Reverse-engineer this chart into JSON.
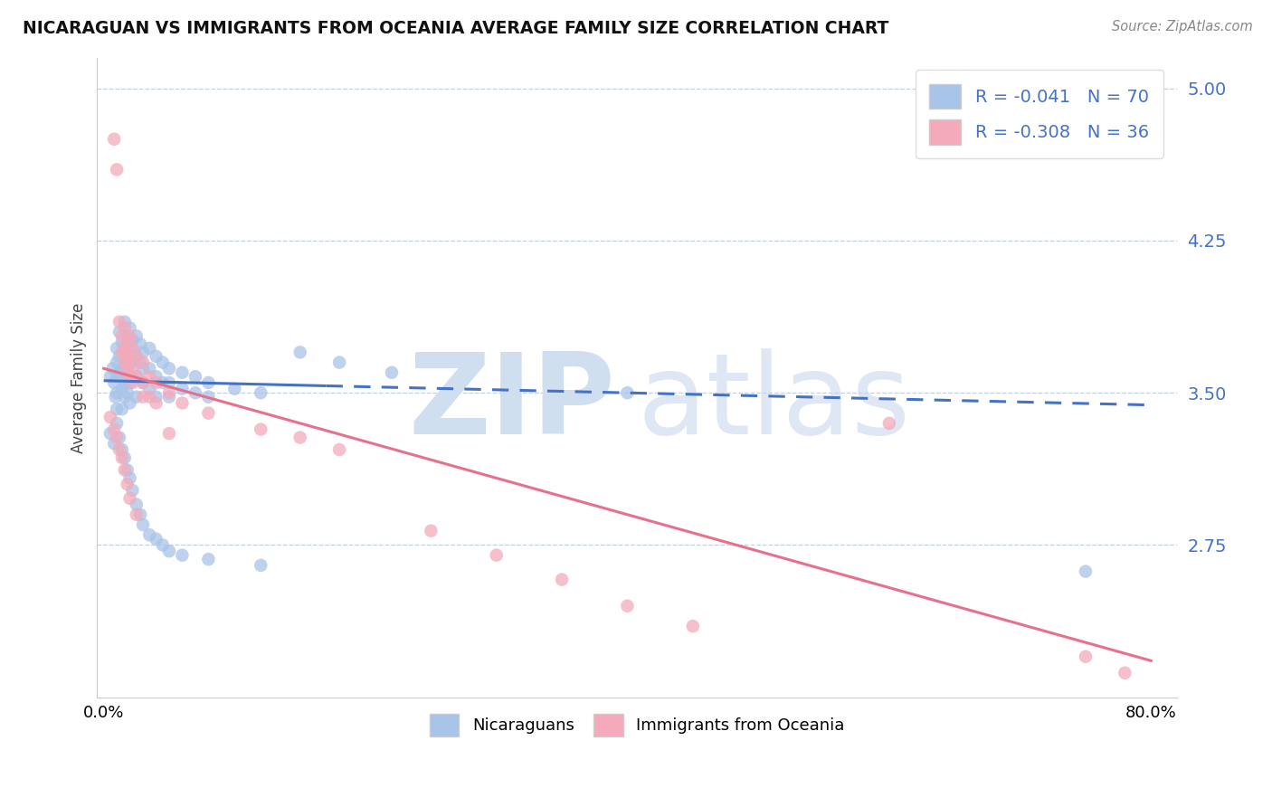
{
  "title": "NICARAGUAN VS IMMIGRANTS FROM OCEANIA AVERAGE FAMILY SIZE CORRELATION CHART",
  "source": "Source: ZipAtlas.com",
  "ylabel": "Average Family Size",
  "yticks": [
    2.75,
    3.5,
    4.25,
    5.0
  ],
  "xlim": [
    -0.005,
    0.82
  ],
  "ylim": [
    2.0,
    5.15
  ],
  "color_blue": "#A8C4E8",
  "color_pink": "#F4AABB",
  "color_blue_line": "#4472C4",
  "color_pink_line": "#E8708A",
  "color_text_blue": "#4472C4",
  "color_grid": "#BBCCDD",
  "blue_trend_x": [
    0.0,
    0.8
  ],
  "blue_trend_y": [
    3.56,
    3.44
  ],
  "pink_trend_x": [
    0.0,
    0.8
  ],
  "pink_trend_y": [
    3.62,
    2.18
  ],
  "blue_scatter": [
    [
      0.005,
      3.58
    ],
    [
      0.007,
      3.62
    ],
    [
      0.008,
      3.55
    ],
    [
      0.009,
      3.48
    ],
    [
      0.01,
      3.72
    ],
    [
      0.01,
      3.65
    ],
    [
      0.01,
      3.58
    ],
    [
      0.01,
      3.5
    ],
    [
      0.01,
      3.42
    ],
    [
      0.012,
      3.8
    ],
    [
      0.012,
      3.68
    ],
    [
      0.012,
      3.6
    ],
    [
      0.014,
      3.75
    ],
    [
      0.014,
      3.62
    ],
    [
      0.014,
      3.52
    ],
    [
      0.014,
      3.42
    ],
    [
      0.016,
      3.85
    ],
    [
      0.016,
      3.72
    ],
    [
      0.016,
      3.62
    ],
    [
      0.016,
      3.55
    ],
    [
      0.016,
      3.48
    ],
    [
      0.018,
      3.78
    ],
    [
      0.018,
      3.68
    ],
    [
      0.018,
      3.58
    ],
    [
      0.018,
      3.5
    ],
    [
      0.02,
      3.82
    ],
    [
      0.02,
      3.72
    ],
    [
      0.02,
      3.64
    ],
    [
      0.02,
      3.55
    ],
    [
      0.02,
      3.45
    ],
    [
      0.022,
      3.76
    ],
    [
      0.022,
      3.66
    ],
    [
      0.022,
      3.58
    ],
    [
      0.025,
      3.78
    ],
    [
      0.025,
      3.68
    ],
    [
      0.025,
      3.58
    ],
    [
      0.025,
      3.48
    ],
    [
      0.028,
      3.74
    ],
    [
      0.028,
      3.65
    ],
    [
      0.03,
      3.7
    ],
    [
      0.03,
      3.62
    ],
    [
      0.03,
      3.55
    ],
    [
      0.035,
      3.72
    ],
    [
      0.035,
      3.62
    ],
    [
      0.035,
      3.52
    ],
    [
      0.04,
      3.68
    ],
    [
      0.04,
      3.58
    ],
    [
      0.04,
      3.48
    ],
    [
      0.045,
      3.65
    ],
    [
      0.045,
      3.55
    ],
    [
      0.05,
      3.62
    ],
    [
      0.05,
      3.55
    ],
    [
      0.05,
      3.48
    ],
    [
      0.06,
      3.6
    ],
    [
      0.06,
      3.52
    ],
    [
      0.07,
      3.58
    ],
    [
      0.07,
      3.5
    ],
    [
      0.08,
      3.55
    ],
    [
      0.08,
      3.48
    ],
    [
      0.1,
      3.52
    ],
    [
      0.12,
      3.5
    ],
    [
      0.15,
      3.7
    ],
    [
      0.18,
      3.65
    ],
    [
      0.22,
      3.6
    ],
    [
      0.4,
      3.5
    ],
    [
      0.005,
      3.3
    ],
    [
      0.008,
      3.25
    ],
    [
      0.01,
      3.35
    ],
    [
      0.012,
      3.28
    ],
    [
      0.014,
      3.22
    ],
    [
      0.016,
      3.18
    ],
    [
      0.018,
      3.12
    ],
    [
      0.02,
      3.08
    ],
    [
      0.022,
      3.02
    ],
    [
      0.025,
      2.95
    ],
    [
      0.028,
      2.9
    ],
    [
      0.03,
      2.85
    ],
    [
      0.035,
      2.8
    ],
    [
      0.04,
      2.78
    ],
    [
      0.045,
      2.75
    ],
    [
      0.05,
      2.72
    ],
    [
      0.06,
      2.7
    ],
    [
      0.08,
      2.68
    ],
    [
      0.12,
      2.65
    ],
    [
      0.75,
      2.62
    ]
  ],
  "pink_scatter": [
    [
      0.008,
      4.75
    ],
    [
      0.01,
      4.6
    ],
    [
      0.012,
      3.85
    ],
    [
      0.014,
      3.78
    ],
    [
      0.014,
      3.7
    ],
    [
      0.016,
      3.82
    ],
    [
      0.016,
      3.72
    ],
    [
      0.016,
      3.65
    ],
    [
      0.018,
      3.75
    ],
    [
      0.018,
      3.68
    ],
    [
      0.018,
      3.62
    ],
    [
      0.02,
      3.78
    ],
    [
      0.02,
      3.68
    ],
    [
      0.02,
      3.58
    ],
    [
      0.022,
      3.72
    ],
    [
      0.022,
      3.62
    ],
    [
      0.022,
      3.55
    ],
    [
      0.025,
      3.68
    ],
    [
      0.025,
      3.58
    ],
    [
      0.03,
      3.65
    ],
    [
      0.03,
      3.55
    ],
    [
      0.03,
      3.48
    ],
    [
      0.035,
      3.58
    ],
    [
      0.035,
      3.48
    ],
    [
      0.04,
      3.55
    ],
    [
      0.04,
      3.45
    ],
    [
      0.05,
      3.5
    ],
    [
      0.06,
      3.45
    ],
    [
      0.08,
      3.4
    ],
    [
      0.005,
      3.38
    ],
    [
      0.008,
      3.32
    ],
    [
      0.01,
      3.28
    ],
    [
      0.012,
      3.22
    ],
    [
      0.014,
      3.18
    ],
    [
      0.016,
      3.12
    ],
    [
      0.018,
      3.05
    ],
    [
      0.02,
      2.98
    ],
    [
      0.025,
      2.9
    ],
    [
      0.05,
      3.3
    ],
    [
      0.12,
      3.32
    ],
    [
      0.15,
      3.28
    ],
    [
      0.18,
      3.22
    ],
    [
      0.25,
      2.82
    ],
    [
      0.3,
      2.7
    ],
    [
      0.35,
      2.58
    ],
    [
      0.4,
      2.45
    ],
    [
      0.45,
      2.35
    ],
    [
      0.6,
      3.35
    ],
    [
      0.75,
      2.2
    ],
    [
      0.78,
      2.12
    ]
  ]
}
